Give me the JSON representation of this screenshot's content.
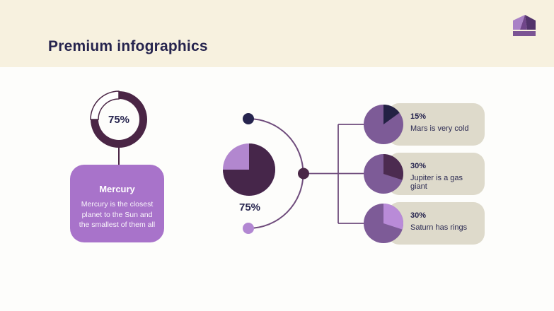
{
  "title": "Premium infographics",
  "left": {
    "donut_percent_label": "75%",
    "card_title": "Mercury",
    "card_description": "Mercury is the closest planet to the Sun and the smallest of them all"
  },
  "center": {
    "pie_percent_label": "75%"
  },
  "right": {
    "items": [
      {
        "percent_label": "15%",
        "text": "Mars is very cold"
      },
      {
        "percent_label": "30%",
        "text": "Jupiter is a gas giant"
      },
      {
        "percent_label": "30%",
        "text": "Saturn has rings"
      }
    ]
  },
  "colors": {
    "header_cream": "#F7F1DF",
    "slide_background": "#FDFDFB",
    "dark_navy": "#26244E",
    "dark_plum": "#4A2545",
    "medium_purple": "#7D5B97",
    "lavender_card": "#A873CA",
    "light_purple": "#B98BD8",
    "info_card_beige": "#DEDACB",
    "connector_purple": "#6F4C7C"
  },
  "chart_data": [
    {
      "type": "pie",
      "variant": "donut",
      "title": "Mercury",
      "display": "75%",
      "values": [
        75,
        25
      ],
      "labels": [
        "filled",
        "empty"
      ],
      "colors": [
        "#4A2545",
        "#FFFFFF"
      ],
      "outlined": [
        false,
        true
      ],
      "outline_color": "#4A2545"
    },
    {
      "type": "pie",
      "display": "75%",
      "values": [
        75,
        25
      ],
      "labels": [
        "filled",
        "remainder"
      ],
      "colors": [
        "#46264A",
        "#B287CF"
      ]
    },
    {
      "type": "pie",
      "display": "15%",
      "label": "Mars is very cold",
      "values": [
        15,
        85
      ],
      "colors": [
        "#232144",
        "#7D5B97"
      ]
    },
    {
      "type": "pie",
      "display": "30%",
      "label": "Jupiter is a gas giant",
      "values": [
        30,
        70
      ],
      "colors": [
        "#4C2B50",
        "#7D5B97"
      ]
    },
    {
      "type": "pie",
      "display": "30%",
      "label": "Saturn has rings",
      "values": [
        30,
        70
      ],
      "colors": [
        "#B98BD8",
        "#7D5B97"
      ]
    }
  ]
}
